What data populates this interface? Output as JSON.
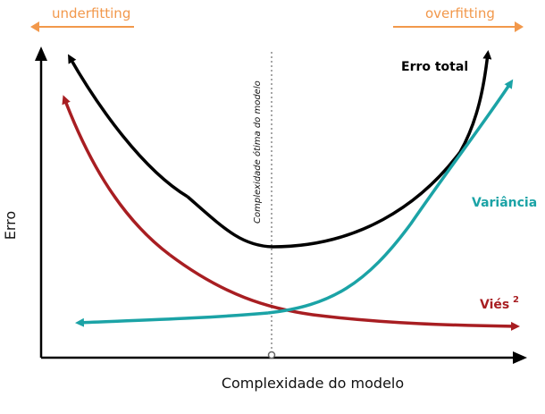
{
  "labels": {
    "underfitting": "underfitting",
    "overfitting": "overfitting",
    "y_axis": "Erro",
    "x_axis": "Complexidade do modelo",
    "total_error": "Erro total",
    "variance": "Variância",
    "bias": "Viés",
    "bias_exponent": "2",
    "optimal": "Complexidade ótima do modelo"
  },
  "colors": {
    "total_error": "#000000",
    "variance": "#1BA3A6",
    "bias": "#A81E22",
    "fitting": "#F2984B",
    "axes": "#000000",
    "optimal_line": "#888888"
  },
  "legend_icons": {
    "underfitting_arrow": "left-arrow-icon",
    "overfitting_arrow": "right-arrow-icon"
  }
}
